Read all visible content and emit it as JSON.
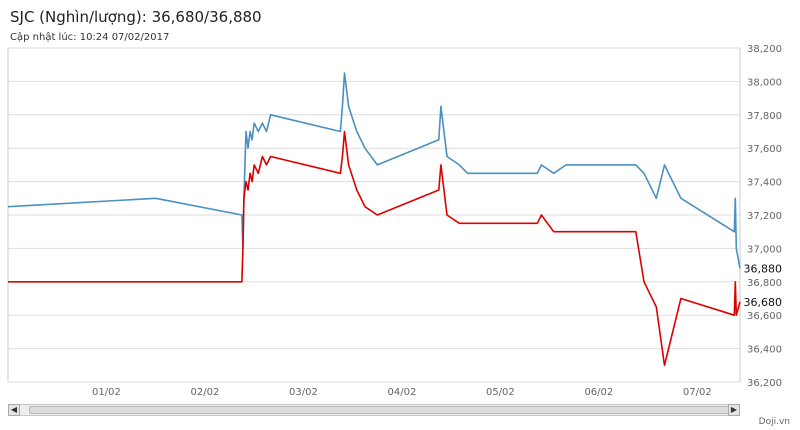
{
  "title": "SJC (Nghìn/lượng): 36,680/36,880",
  "subtitle": "Cập nhật lúc: 10:24 07/02/2017",
  "credit": "Doji.vn",
  "scrollbar": {
    "left_icon": "◀",
    "right_icon": "▶"
  },
  "colors": {
    "buy": "#dd0000",
    "sell": "#4a90c0",
    "grid": "#dddddd"
  },
  "chart_data": {
    "type": "line",
    "title": "SJC (Nghìn/lượng): 36,680/36,880",
    "x_range": [
      "2017-01-31 00:00",
      "2017-02-07 10:24"
    ],
    "x_ticks": [
      "01/02",
      "02/02",
      "03/02",
      "04/02",
      "05/02",
      "06/02",
      "07/02"
    ],
    "ylim": [
      36200,
      38200
    ],
    "y_ticks": [
      "36,200",
      "36,400",
      "36,600",
      "36,800",
      "37,000",
      "37,200",
      "37,400",
      "37,600",
      "37,800",
      "38,000",
      "38,200"
    ],
    "last_values": [
      "36,880",
      "36,680"
    ],
    "grid": true,
    "series": [
      {
        "color": "#4a90c0",
        "points": [
          [
            "2017-01-31 00:00",
            37250
          ],
          [
            "2017-02-01 12:00",
            37300
          ],
          [
            "2017-02-02 09:00",
            37200
          ],
          [
            "2017-02-02 09:15",
            37000
          ],
          [
            "2017-02-02 09:30",
            37300
          ],
          [
            "2017-02-02 10:00",
            37700
          ],
          [
            "2017-02-02 10:30",
            37600
          ],
          [
            "2017-02-02 11:00",
            37700
          ],
          [
            "2017-02-02 11:30",
            37650
          ],
          [
            "2017-02-02 12:00",
            37750
          ],
          [
            "2017-02-02 13:00",
            37700
          ],
          [
            "2017-02-02 14:00",
            37750
          ],
          [
            "2017-02-02 15:00",
            37700
          ],
          [
            "2017-02-02 16:00",
            37800
          ],
          [
            "2017-02-03 09:00",
            37700
          ],
          [
            "2017-02-03 09:30",
            37850
          ],
          [
            "2017-02-03 10:00",
            38050
          ],
          [
            "2017-02-03 11:00",
            37850
          ],
          [
            "2017-02-03 13:00",
            37700
          ],
          [
            "2017-02-03 15:00",
            37600
          ],
          [
            "2017-02-03 18:00",
            37500
          ],
          [
            "2017-02-04 09:00",
            37650
          ],
          [
            "2017-02-04 09:30",
            37850
          ],
          [
            "2017-02-04 11:00",
            37550
          ],
          [
            "2017-02-04 14:00",
            37500
          ],
          [
            "2017-02-04 16:00",
            37450
          ],
          [
            "2017-02-05 09:00",
            37450
          ],
          [
            "2017-02-05 10:00",
            37500
          ],
          [
            "2017-02-05 13:00",
            37450
          ],
          [
            "2017-02-05 16:00",
            37500
          ],
          [
            "2017-02-06 09:00",
            37500
          ],
          [
            "2017-02-06 11:00",
            37450
          ],
          [
            "2017-02-06 14:00",
            37300
          ],
          [
            "2017-02-06 16:00",
            37500
          ],
          [
            "2017-02-06 20:00",
            37300
          ],
          [
            "2017-02-07 09:00",
            37100
          ],
          [
            "2017-02-07 09:15",
            37300
          ],
          [
            "2017-02-07 09:30",
            37000
          ],
          [
            "2017-02-07 10:24",
            36880
          ]
        ]
      },
      {
        "color": "#dd0000",
        "points": [
          [
            "2017-01-31 00:00",
            36800
          ],
          [
            "2017-02-01 12:00",
            36800
          ],
          [
            "2017-02-02 09:00",
            36800
          ],
          [
            "2017-02-02 09:15",
            37000
          ],
          [
            "2017-02-02 09:30",
            37300
          ],
          [
            "2017-02-02 10:00",
            37400
          ],
          [
            "2017-02-02 10:30",
            37350
          ],
          [
            "2017-02-02 11:00",
            37450
          ],
          [
            "2017-02-02 11:30",
            37400
          ],
          [
            "2017-02-02 12:00",
            37500
          ],
          [
            "2017-02-02 13:00",
            37450
          ],
          [
            "2017-02-02 14:00",
            37550
          ],
          [
            "2017-02-02 15:00",
            37500
          ],
          [
            "2017-02-02 16:00",
            37550
          ],
          [
            "2017-02-03 09:00",
            37450
          ],
          [
            "2017-02-03 09:30",
            37550
          ],
          [
            "2017-02-03 10:00",
            37700
          ],
          [
            "2017-02-03 11:00",
            37500
          ],
          [
            "2017-02-03 13:00",
            37350
          ],
          [
            "2017-02-03 15:00",
            37250
          ],
          [
            "2017-02-03 18:00",
            37200
          ],
          [
            "2017-02-04 09:00",
            37350
          ],
          [
            "2017-02-04 09:30",
            37500
          ],
          [
            "2017-02-04 11:00",
            37200
          ],
          [
            "2017-02-04 14:00",
            37150
          ],
          [
            "2017-02-04 16:00",
            37150
          ],
          [
            "2017-02-05 09:00",
            37150
          ],
          [
            "2017-02-05 10:00",
            37200
          ],
          [
            "2017-02-05 13:00",
            37100
          ],
          [
            "2017-02-05 16:00",
            37100
          ],
          [
            "2017-02-06 09:00",
            37100
          ],
          [
            "2017-02-06 11:00",
            36800
          ],
          [
            "2017-02-06 14:00",
            36650
          ],
          [
            "2017-02-06 16:00",
            36300
          ],
          [
            "2017-02-06 20:00",
            36700
          ],
          [
            "2017-02-07 09:00",
            36600
          ],
          [
            "2017-02-07 09:15",
            36800
          ],
          [
            "2017-02-07 09:30",
            36600
          ],
          [
            "2017-02-07 10:24",
            36680
          ]
        ]
      }
    ]
  }
}
